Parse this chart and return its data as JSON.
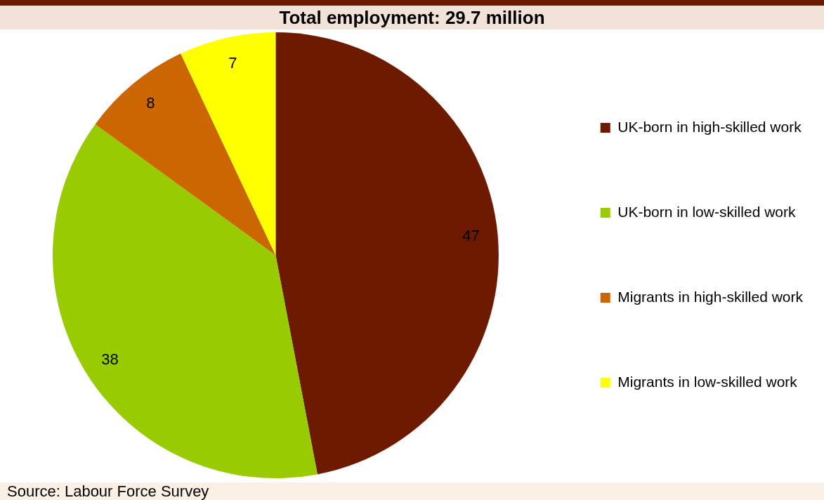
{
  "chart_data": {
    "type": "pie",
    "title": "Total employment: 29.7 million",
    "categories": [
      "UK-born in high-skilled work",
      "UK-born in low-skilled work",
      "Migrants in high-skilled work",
      "Migrants in low-skilled work"
    ],
    "values": [
      47,
      38,
      8,
      7
    ],
    "colors": [
      "#6e1a00",
      "#99cc00",
      "#cc6600",
      "#ffff00"
    ],
    "data_labels": true,
    "legend": "right",
    "annotations": [
      "Source:  Labour Force Survey"
    ]
  }
}
